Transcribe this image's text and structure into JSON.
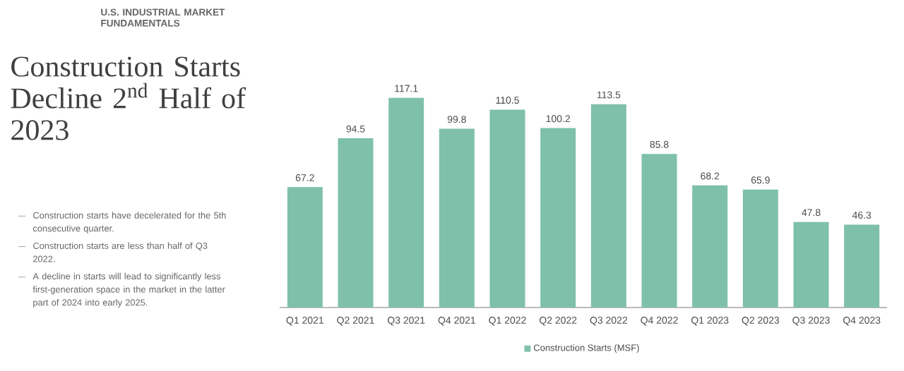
{
  "chart_data": {
    "type": "bar",
    "subtitle": "U.S. INDUSTRIAL MARKET FUNDAMENTALS",
    "title": "Construction Starts Decline 2$^{nd}$ Half of 2023",
    "annotations": [
      "Construction starts have decelerated for the 5th consecutive quarter.",
      "Construction starts are less than half of Q3 2022.",
      "A decline in starts will lead to significantly less first-generation space in the market in the latter part of 2024 into early 2025."
    ],
    "categories": [
      "Q1 2021",
      "Q2 2021",
      "Q3 2021",
      "Q4 2021",
      "Q1 2022",
      "Q2 2022",
      "Q3 2022",
      "Q4 2022",
      "Q1 2023",
      "Q2 2023",
      "Q3 2023",
      "Q4 2023"
    ],
    "series": [
      {
        "name": "Construction Starts (MSF)",
        "color": "#7fc0ab",
        "values": [
          67.2,
          94.5,
          117.1,
          99.8,
          110.5,
          100.2,
          113.5,
          85.8,
          68.2,
          65.9,
          47.8,
          46.3
        ]
      }
    ],
    "data_labels": true,
    "legend": "bottom"
  }
}
